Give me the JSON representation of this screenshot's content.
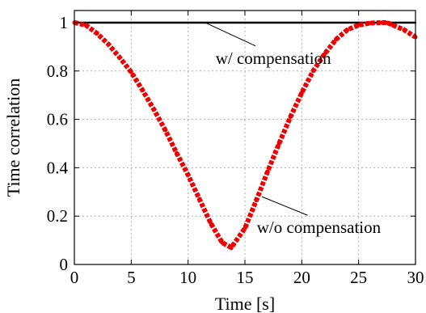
{
  "chart_data": {
    "type": "line",
    "xlabel": "Time [s]",
    "ylabel": "Time correlation",
    "xlim": [
      0,
      30
    ],
    "ylim": [
      0,
      1.05
    ],
    "xticks": [
      0,
      5,
      10,
      15,
      20,
      25,
      30
    ],
    "yticks": [
      0,
      0.2,
      0.4,
      0.6,
      0.8,
      1
    ],
    "xtick_labels": [
      "0",
      "5",
      "10",
      "15",
      "20",
      "25",
      "30"
    ],
    "ytick_labels": [
      "0",
      "0.2",
      "0.4",
      "0.6",
      "0.8",
      "1"
    ],
    "grid": true,
    "series": [
      {
        "name": "w/ compensation",
        "color": "#000000",
        "x": [
          0,
          5,
          10,
          15,
          20,
          25,
          30
        ],
        "y": [
          1.0,
          1.0,
          1.0,
          1.0,
          1.0,
          1.0,
          1.0
        ]
      },
      {
        "name": "w/o compensation",
        "color": "#ee0000",
        "x": [
          0,
          1,
          2,
          3,
          4,
          5,
          6,
          7,
          8,
          9,
          10,
          11,
          12,
          13,
          13.8,
          15,
          16,
          17,
          18,
          19,
          20,
          21,
          22,
          23,
          24,
          25,
          26,
          27,
          27.5,
          28,
          29,
          30
        ],
        "y": [
          1.0,
          0.99,
          0.955,
          0.91,
          0.855,
          0.795,
          0.72,
          0.64,
          0.555,
          0.46,
          0.37,
          0.27,
          0.17,
          0.09,
          0.07,
          0.15,
          0.265,
          0.385,
          0.5,
          0.61,
          0.71,
          0.8,
          0.87,
          0.93,
          0.97,
          0.99,
          0.998,
          1.0,
          1.0,
          0.99,
          0.97,
          0.94
        ]
      }
    ],
    "annotations": [
      {
        "text": "w/ compensation",
        "series": 0,
        "x": 17.5,
        "y": 0.83,
        "target_x": 11.5,
        "target_y": 1.0
      },
      {
        "text": "w/o compensation",
        "series": 1,
        "x": 21.5,
        "y": 0.13,
        "target_x": 16.5,
        "target_y": 0.28
      }
    ]
  }
}
